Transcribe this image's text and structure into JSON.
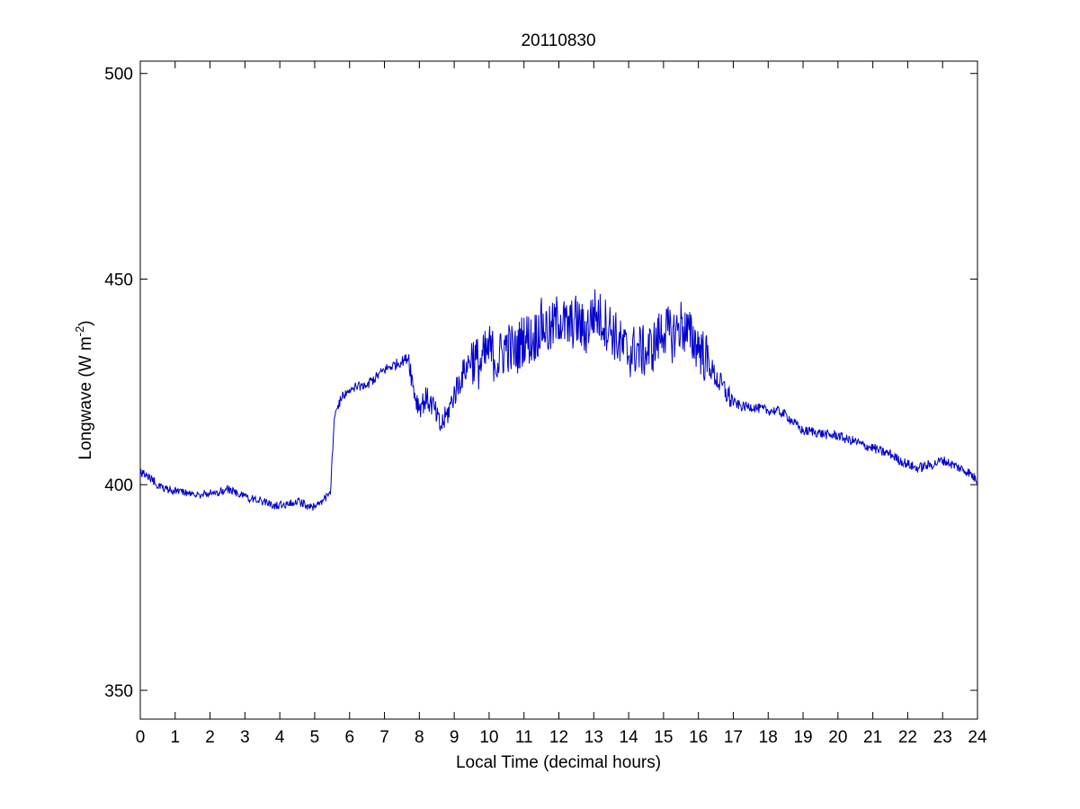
{
  "chart_data": {
    "type": "line",
    "title": "20110830",
    "xlabel": "Local Time (decimal hours)",
    "ylabel": {
      "main": "Longwave (W m",
      "superscript": "-2",
      "suffix": ")"
    },
    "xlim": [
      0,
      24
    ],
    "ylim": [
      343,
      503
    ],
    "xticks": [
      "0",
      "1",
      "2",
      "3",
      "4",
      "5",
      "6",
      "7",
      "8",
      "9",
      "10",
      "11",
      "12",
      "13",
      "14",
      "15",
      "16",
      "17",
      "18",
      "19",
      "20",
      "21",
      "22",
      "23",
      "24"
    ],
    "yticks": [
      "350",
      "400",
      "450",
      "500"
    ],
    "grid": false,
    "line_color": "#0000cc",
    "series": [
      {
        "x": [
          0.0,
          0.25,
          0.5,
          0.75,
          1.0,
          1.25,
          1.5,
          1.75,
          2.0,
          2.25,
          2.5,
          2.75,
          3.0,
          3.25,
          3.5,
          3.75,
          4.0,
          4.25,
          4.5,
          4.75,
          5.0,
          5.2,
          5.35,
          5.45,
          5.55,
          5.7,
          5.85,
          6.0,
          6.25,
          6.5,
          6.75,
          7.0,
          7.25,
          7.5,
          7.7,
          7.8,
          7.9,
          8.0,
          8.2,
          8.4,
          8.6,
          8.8,
          9.0,
          9.25,
          9.5,
          9.75,
          10.0,
          10.25,
          10.5,
          10.75,
          11.0,
          11.25,
          11.5,
          11.75,
          12.0,
          12.25,
          12.5,
          12.75,
          13.0,
          13.25,
          13.5,
          13.75,
          14.0,
          14.25,
          14.5,
          14.75,
          15.0,
          15.25,
          15.5,
          15.75,
          16.0,
          16.25,
          16.5,
          16.75,
          17.0,
          17.25,
          17.5,
          17.75,
          18.0,
          18.25,
          18.5,
          18.75,
          19.0,
          19.25,
          19.5,
          19.75,
          20.0,
          20.25,
          20.5,
          20.75,
          21.0,
          21.25,
          21.5,
          21.75,
          22.0,
          22.25,
          22.5,
          22.75,
          23.0,
          23.25,
          23.5,
          23.75,
          24.0
        ],
        "y": [
          403,
          402,
          400,
          399,
          398.5,
          398,
          397.5,
          397.5,
          398,
          398,
          399,
          398,
          397,
          396.5,
          396,
          395,
          395,
          395.5,
          396,
          395,
          394.5,
          396,
          397,
          398,
          415,
          420,
          422,
          423,
          424,
          424.5,
          426,
          428,
          429,
          430,
          431,
          425,
          421,
          419,
          421,
          419,
          414,
          417,
          422,
          427,
          431,
          429,
          433,
          430,
          434,
          432,
          436,
          435,
          439,
          437,
          441,
          438,
          440,
          437,
          442,
          440,
          438,
          434,
          432,
          433,
          432,
          434,
          438,
          436,
          439,
          436,
          434,
          430,
          426,
          423,
          420,
          419,
          419,
          418.5,
          418,
          418,
          417,
          415,
          413,
          413,
          412.5,
          412,
          412,
          411,
          410.5,
          409.5,
          409,
          408,
          407.5,
          406,
          405,
          404,
          404.5,
          405,
          406,
          405,
          404,
          403,
          401
        ]
      }
    ]
  }
}
